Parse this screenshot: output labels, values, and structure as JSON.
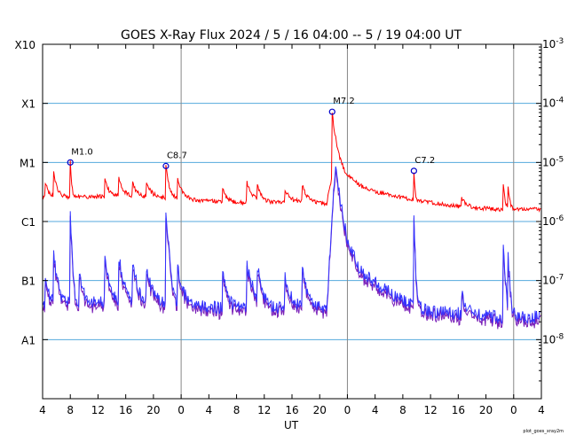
{
  "chart_data": {
    "type": "line",
    "title": "GOES X-Ray Flux   2024 /  5 / 16   04:00 --  5 / 19   04:00   UT",
    "xlabel": "UT",
    "x_tick_labels": [
      "4",
      "8",
      "12",
      "16",
      "20",
      "0",
      "4",
      "8",
      "12",
      "16",
      "20",
      "0",
      "4",
      "8",
      "12",
      "16",
      "20",
      "0",
      "4"
    ],
    "x_range_hours": [
      0,
      72
    ],
    "day_boundaries_hours": [
      20,
      44,
      68
    ],
    "y_scale": "log",
    "ylim": [
      1e-09,
      0.001
    ],
    "left_ticks": [
      {
        "label": "A1",
        "value": 1e-08
      },
      {
        "label": "B1",
        "value": 1e-07
      },
      {
        "label": "C1",
        "value": 1e-06
      },
      {
        "label": "M1",
        "value": 1e-05
      },
      {
        "label": "X1",
        "value": 0.0001
      },
      {
        "label": "X10",
        "value": 0.001
      }
    ],
    "right_ticks": [
      {
        "base": "10",
        "exp": "-3",
        "value": 0.001
      },
      {
        "base": "10",
        "exp": "-4",
        "value": 0.0001
      },
      {
        "base": "10",
        "exp": "-5",
        "value": 1e-05
      },
      {
        "base": "10",
        "exp": "-6",
        "value": 1e-06
      },
      {
        "base": "10",
        "exp": "-7",
        "value": 1e-07
      },
      {
        "base": "10",
        "exp": "-8",
        "value": 1e-08
      }
    ],
    "gridlines_at": [
      1e-08,
      1e-07,
      1e-06,
      1e-05,
      0.0001
    ],
    "colors": {
      "long": "#ff0000",
      "short": "#3333ff",
      "short_alt": "#7a1fb8",
      "grid": "#55aadd",
      "dayline": "#888888",
      "marker": "#0000cc"
    },
    "flares": [
      {
        "label": "M1.0",
        "hour": 4.0,
        "value": 1e-05
      },
      {
        "label": "C8.7",
        "hour": 17.8,
        "value": 8.7e-06
      },
      {
        "label": "M7.2",
        "hour": 41.8,
        "value": 7.2e-05
      },
      {
        "label": "C7.2",
        "hour": 53.6,
        "value": 7.2e-06
      }
    ],
    "series": [
      {
        "key": "long",
        "base": [
          [
            0,
            2.6e-06
          ],
          [
            6,
            2.6e-06
          ],
          [
            12,
            2.7e-06
          ],
          [
            18,
            2.5e-06
          ],
          [
            22,
            2.3e-06
          ],
          [
            28,
            2.1e-06
          ],
          [
            34,
            2.1e-06
          ],
          [
            38,
            2.2e-06
          ],
          [
            41,
            2e-06
          ],
          [
            42.3,
            1.2e-05
          ],
          [
            44,
            6e-06
          ],
          [
            46,
            4e-06
          ],
          [
            48,
            3.2e-06
          ],
          [
            52,
            2.5e-06
          ],
          [
            56,
            2.1e-06
          ],
          [
            60,
            1.8e-06
          ],
          [
            66,
            1.6e-06
          ],
          [
            72,
            1.6e-06
          ]
        ],
        "events": [
          [
            0.4,
            4.5e-06,
            0.4
          ],
          [
            1.6,
            6.5e-06,
            0.4
          ],
          [
            4.0,
            1e-05,
            0.15
          ],
          [
            9.0,
            5e-06,
            0.5
          ],
          [
            11.0,
            5.5e-06,
            0.5
          ],
          [
            13.0,
            4.5e-06,
            0.5
          ],
          [
            15.0,
            4.5e-06,
            0.6
          ],
          [
            17.8,
            8.7e-06,
            0.35
          ],
          [
            19.5,
            5e-06,
            0.6
          ],
          [
            26.0,
            3.5e-06,
            0.5
          ],
          [
            29.5,
            4.5e-06,
            0.7
          ],
          [
            31.0,
            4e-06,
            0.5
          ],
          [
            35.0,
            3.5e-06,
            0.6
          ],
          [
            37.5,
            4.2e-06,
            0.5
          ],
          [
            41.8,
            7.2e-05,
            0.35
          ],
          [
            50.0,
            2.8e-06,
            0.6
          ],
          [
            53.6,
            7.2e-06,
            0.12
          ],
          [
            60.5,
            2.6e-06,
            0.5
          ],
          [
            66.5,
            4.5e-06,
            0.2
          ],
          [
            67.2,
            4e-06,
            0.2
          ]
        ]
      },
      {
        "key": "short",
        "base": [
          [
            0,
            4.3e-08
          ],
          [
            6,
            4.3e-08
          ],
          [
            12,
            4.3e-08
          ],
          [
            18,
            4e-08
          ],
          [
            22,
            3.6e-08
          ],
          [
            28,
            3.5e-08
          ],
          [
            34,
            3.5e-08
          ],
          [
            38,
            3.5e-08
          ],
          [
            41,
            3.3e-08
          ],
          [
            42.3,
            1.1e-05
          ],
          [
            43,
            2e-06
          ],
          [
            44,
            5e-07
          ],
          [
            45,
            2.4e-07
          ],
          [
            46,
            1.4e-07
          ],
          [
            48,
            9e-08
          ],
          [
            52,
            4.5e-08
          ],
          [
            56,
            3e-08
          ],
          [
            60,
            2.8e-08
          ],
          [
            66,
            2.4e-08
          ],
          [
            72,
            2.4e-08
          ]
        ],
        "events": [
          [
            0.4,
            1.2e-07,
            0.4
          ],
          [
            1.6,
            2.5e-07,
            0.4
          ],
          [
            4.0,
            1.5e-06,
            0.15
          ],
          [
            5.3,
            1.4e-07,
            0.4
          ],
          [
            9.0,
            2.2e-07,
            0.5
          ],
          [
            11.0,
            2.5e-07,
            0.5
          ],
          [
            13.0,
            2e-07,
            0.5
          ],
          [
            15.0,
            1.5e-07,
            0.6
          ],
          [
            17.8,
            1.3e-06,
            0.3
          ],
          [
            19.5,
            1.5e-07,
            0.6
          ],
          [
            26.0,
            1.3e-07,
            0.5
          ],
          [
            29.5,
            1.8e-07,
            0.7
          ],
          [
            31.0,
            1.6e-07,
            0.5
          ],
          [
            35.0,
            1.2e-07,
            0.6
          ],
          [
            37.5,
            1.6e-07,
            0.5
          ],
          [
            50.0,
            5e-08,
            0.6
          ],
          [
            53.6,
            1.2e-06,
            0.12
          ],
          [
            60.5,
            6e-08,
            0.5
          ],
          [
            66.5,
            4e-07,
            0.2
          ],
          [
            67.2,
            2.5e-07,
            0.2
          ]
        ]
      }
    ]
  },
  "credit": "plot_goes_xray2m"
}
